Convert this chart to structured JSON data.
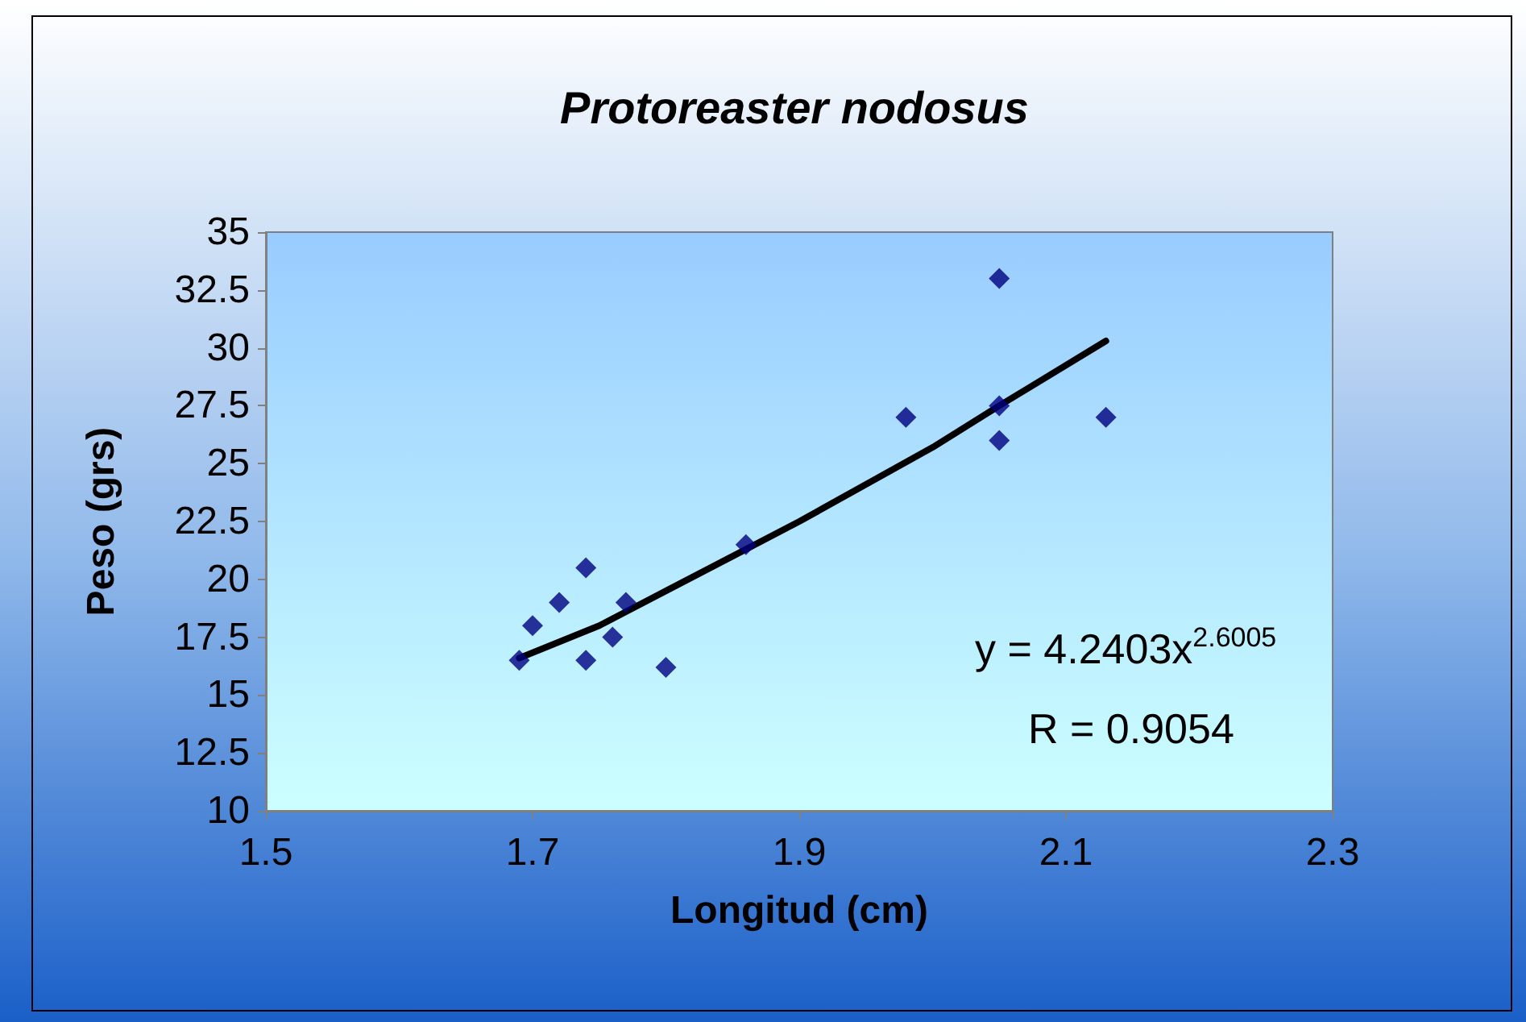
{
  "chart_data": {
    "type": "scatter",
    "title": "Protoreaster nodosus",
    "xlabel": "Longitud (cm)",
    "ylabel": "Peso (grs)",
    "xlim": [
      1.5,
      2.3
    ],
    "xticks": [
      1.5,
      1.7,
      1.9,
      2.1,
      2.3
    ],
    "ylim": [
      10,
      35
    ],
    "yticks": [
      10,
      12.5,
      15,
      17.5,
      20,
      22.5,
      25,
      27.5,
      30,
      32.5,
      35
    ],
    "grid": false,
    "marker": "diamond",
    "series": [
      {
        "color": "#000080",
        "x": [
          1.69,
          1.7,
          1.72,
          1.74,
          1.74,
          1.76,
          1.77,
          1.8,
          1.86,
          1.98,
          2.05,
          2.05,
          2.05,
          2.13
        ],
        "values": [
          16.5,
          18,
          19,
          20.5,
          16.5,
          17.5,
          19,
          16.2,
          21.5,
          27,
          33,
          27.5,
          26,
          27
        ]
      },
      {
        "type": "line",
        "color": "#000000",
        "marker": "none",
        "line_style": "solid",
        "x": [
          1.69,
          1.75,
          1.8,
          1.85,
          1.9,
          1.95,
          2.0,
          2.05,
          2.13
        ],
        "values": [
          16.6,
          18,
          19.5,
          21,
          22.5,
          24.1,
          25.7,
          27.5,
          30.3
        ]
      }
    ],
    "annotations": [
      "y = 4.2403x$^{2.6005}$",
      "R = 0.9054"
    ]
  }
}
